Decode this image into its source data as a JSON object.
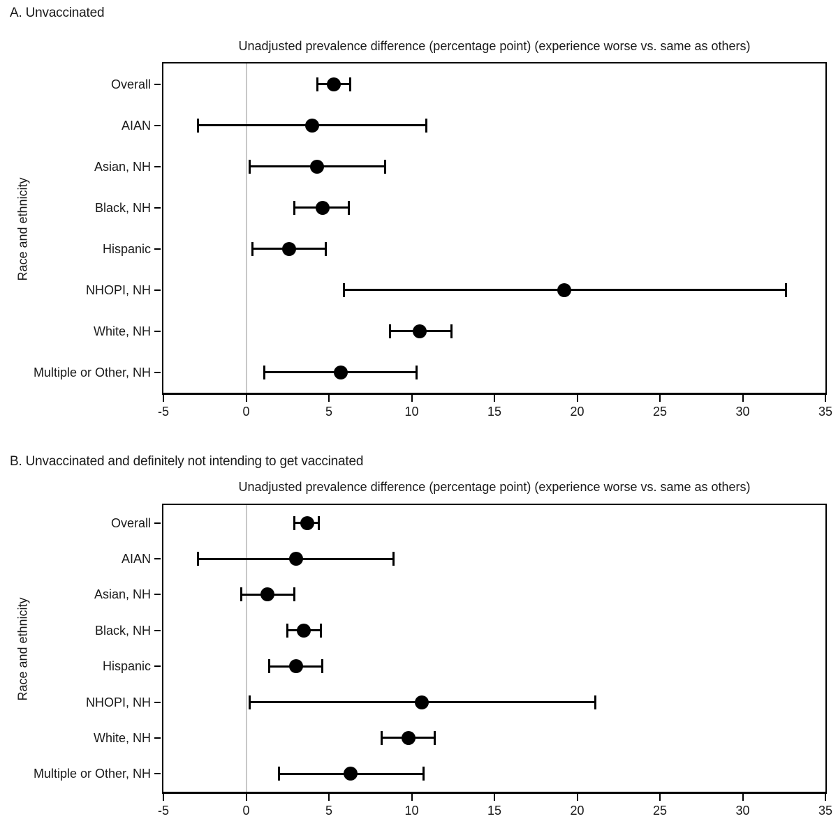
{
  "figure": {
    "ylabel": "Race and ethnicity",
    "colors": {
      "marker": "#000000",
      "ci_line": "#000000",
      "axis": "#000000",
      "zero_reference_line": "#c8c8c8",
      "text": "#1a1a1a",
      "background": "#ffffff"
    }
  },
  "chart_data": [
    {
      "type": "forest",
      "panel_label": "A. Unvaccinated",
      "title": "Unadjusted prevalence difference (percentage point) (experience worse vs. same as others)",
      "ylabel": "Race and ethnicity",
      "xlim": [
        -5,
        35
      ],
      "xticks": [
        "-5",
        "0",
        "5",
        "10",
        "15",
        "20",
        "25",
        "30",
        "35"
      ],
      "reference_line_x": 0,
      "grid": "off",
      "rows": [
        {
          "label": "Overall",
          "estimate": 5.3,
          "ci_low": 4.3,
          "ci_high": 6.3
        },
        {
          "label": "AIAN",
          "estimate": 4.0,
          "ci_low": -2.9,
          "ci_high": 10.9
        },
        {
          "label": "Asian, NH",
          "estimate": 4.3,
          "ci_low": 0.2,
          "ci_high": 8.4
        },
        {
          "label": "Black, NH",
          "estimate": 4.6,
          "ci_low": 2.9,
          "ci_high": 6.2
        },
        {
          "label": "Hispanic",
          "estimate": 2.6,
          "ci_low": 0.4,
          "ci_high": 4.8
        },
        {
          "label": "NHOPI, NH",
          "estimate": 19.2,
          "ci_low": 5.9,
          "ci_high": 32.6
        },
        {
          "label": "White, NH",
          "estimate": 10.5,
          "ci_low": 8.7,
          "ci_high": 12.4
        },
        {
          "label": "Multiple or Other, NH",
          "estimate": 5.7,
          "ci_low": 1.1,
          "ci_high": 10.3
        }
      ]
    },
    {
      "type": "forest",
      "panel_label": "B. Unvaccinated and definitely not intending to get vaccinated",
      "title": "Unadjusted prevalence difference (percentage point) (experience worse vs. same as others)",
      "ylabel": "Race and ethnicity",
      "xlim": [
        -5,
        35
      ],
      "xticks": [
        "-5",
        "0",
        "5",
        "10",
        "15",
        "20",
        "25",
        "30",
        "35"
      ],
      "reference_line_x": 0,
      "grid": "off",
      "rows": [
        {
          "label": "Overall",
          "estimate": 3.7,
          "ci_low": 2.9,
          "ci_high": 4.4
        },
        {
          "label": "AIAN",
          "estimate": 3.0,
          "ci_low": -2.9,
          "ci_high": 8.9
        },
        {
          "label": "Asian, NH",
          "estimate": 1.3,
          "ci_low": -0.3,
          "ci_high": 2.9
        },
        {
          "label": "Black, NH",
          "estimate": 3.5,
          "ci_low": 2.5,
          "ci_high": 4.5
        },
        {
          "label": "Hispanic",
          "estimate": 3.0,
          "ci_low": 1.4,
          "ci_high": 4.6
        },
        {
          "label": "NHOPI, NH",
          "estimate": 10.6,
          "ci_low": 0.2,
          "ci_high": 21.1
        },
        {
          "label": "White, NH",
          "estimate": 9.8,
          "ci_low": 8.2,
          "ci_high": 11.4
        },
        {
          "label": "Multiple or Other, NH",
          "estimate": 6.3,
          "ci_low": 2.0,
          "ci_high": 10.7
        }
      ]
    }
  ]
}
